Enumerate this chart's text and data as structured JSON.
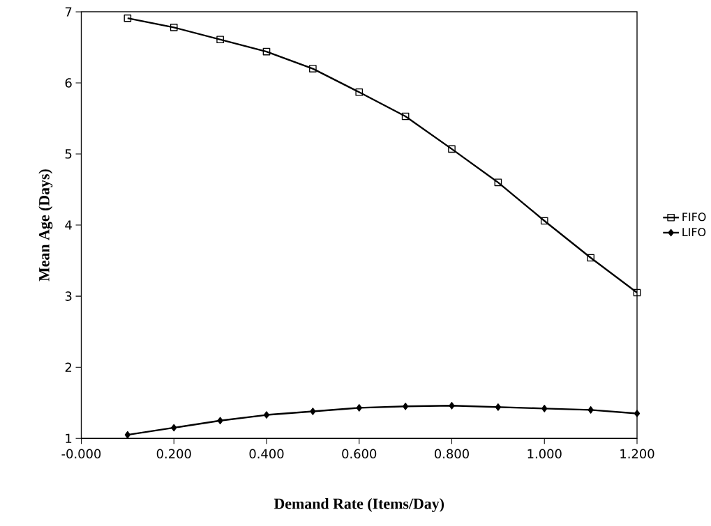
{
  "chart_data": {
    "type": "line",
    "xlabel": "Demand Rate (Items/Day)",
    "ylabel": "Mean Age (Days)",
    "x": [
      0.1,
      0.2,
      0.3,
      0.4,
      0.5,
      0.6,
      0.7,
      0.8,
      0.9,
      1.0,
      1.1,
      1.2
    ],
    "series": [
      {
        "name": "FIFO",
        "color": "#000000",
        "marker": "square",
        "values": [
          6.91,
          6.78,
          6.61,
          6.44,
          6.2,
          5.87,
          5.53,
          5.07,
          4.6,
          4.06,
          3.54,
          3.05
        ]
      },
      {
        "name": "LIFO",
        "color": "#000000",
        "marker": "diamond",
        "values": [
          1.05,
          1.15,
          1.25,
          1.33,
          1.38,
          1.43,
          1.45,
          1.46,
          1.44,
          1.42,
          1.4,
          1.35
        ]
      }
    ],
    "xlim": [
      0,
      1.2
    ],
    "ylim": [
      1,
      7
    ],
    "xticks": [
      {
        "value": 0,
        "label": "-0.000"
      },
      {
        "value": 0.2,
        "label": "0.200"
      },
      {
        "value": 0.4,
        "label": "0.400"
      },
      {
        "value": 0.6,
        "label": "0.600"
      },
      {
        "value": 0.8,
        "label": "0.800"
      },
      {
        "value": 1.0,
        "label": "1.000"
      },
      {
        "value": 1.2,
        "label": "1.200"
      }
    ],
    "yticks": [
      1,
      2,
      3,
      4,
      5,
      6,
      7
    ],
    "legend": "right",
    "line_style": "solid"
  }
}
